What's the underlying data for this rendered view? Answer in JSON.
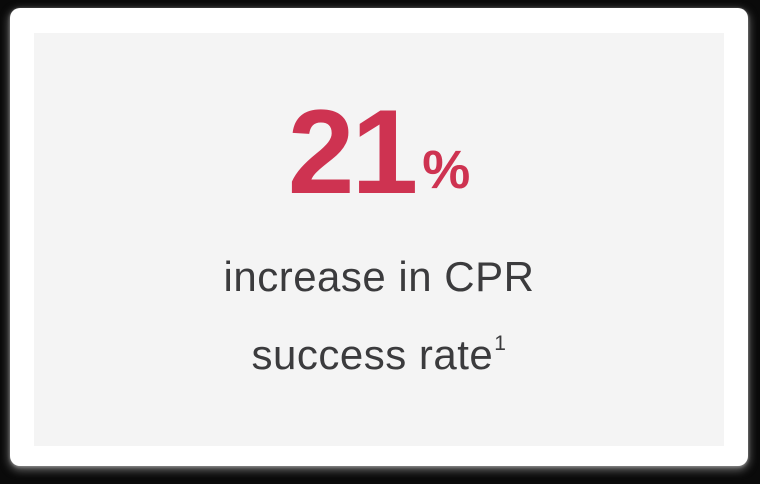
{
  "card": {
    "stat_value": "21",
    "stat_unit": "%",
    "description_line1": "increase in CPR",
    "description_line2": "success rate",
    "footnote_marker": "1"
  },
  "colors": {
    "accent": "#CE3351",
    "text": "#3B3B3D",
    "panel_bg": "#F4F4F4",
    "card_bg": "#FFFFFF",
    "page_bg": "#0A0A0A"
  }
}
